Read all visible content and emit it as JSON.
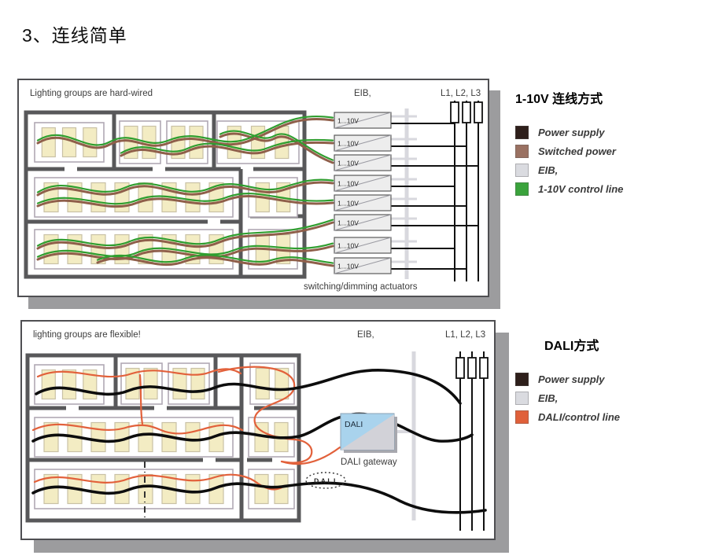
{
  "page": {
    "title": "3、连线简单"
  },
  "top_panel": {
    "caption": "Lighting groups are hard-wired",
    "eib_label": "EIB,",
    "phase_label": "L1, L2, L3",
    "actuator_label": "1...10V",
    "actuator_count": 8,
    "footer": "switching/dimming actuators"
  },
  "top_legend": {
    "title": "1-10V 连线方式",
    "items": [
      {
        "label": "Power supply",
        "color": "#2e1f1b"
      },
      {
        "label": "Switched power",
        "color": "#9a7162"
      },
      {
        "label": "EIB,",
        "color": "#dadbe0"
      },
      {
        "label": "1-10V control line",
        "color": "#3aa33c"
      }
    ]
  },
  "bottom_panel": {
    "caption": "lighting groups are flexible!",
    "eib_label": "EIB,",
    "phase_label": "L1, L2, L3",
    "gateway_box_label": "DALI",
    "gateway_caption": "DALI gateway",
    "dali_logo": "DALI"
  },
  "bottom_legend": {
    "title": "DALI方式",
    "items": [
      {
        "label": "Power supply",
        "color": "#2e1f1b"
      },
      {
        "label": "EIB,",
        "color": "#dadbe0"
      },
      {
        "label": "DALI/control line",
        "color": "#e0603a"
      }
    ]
  },
  "colors": {
    "power_black": "#0d0d0d",
    "switched_brown": "#8f5f4a",
    "control_green": "#2f9e2f",
    "dali_orange": "#e2613b",
    "eib_gray": "#d8d8de",
    "wall_gray": "#58585a",
    "gateway_blue": "#a9d3ed",
    "shadow_gray": "#9c9c9e"
  }
}
